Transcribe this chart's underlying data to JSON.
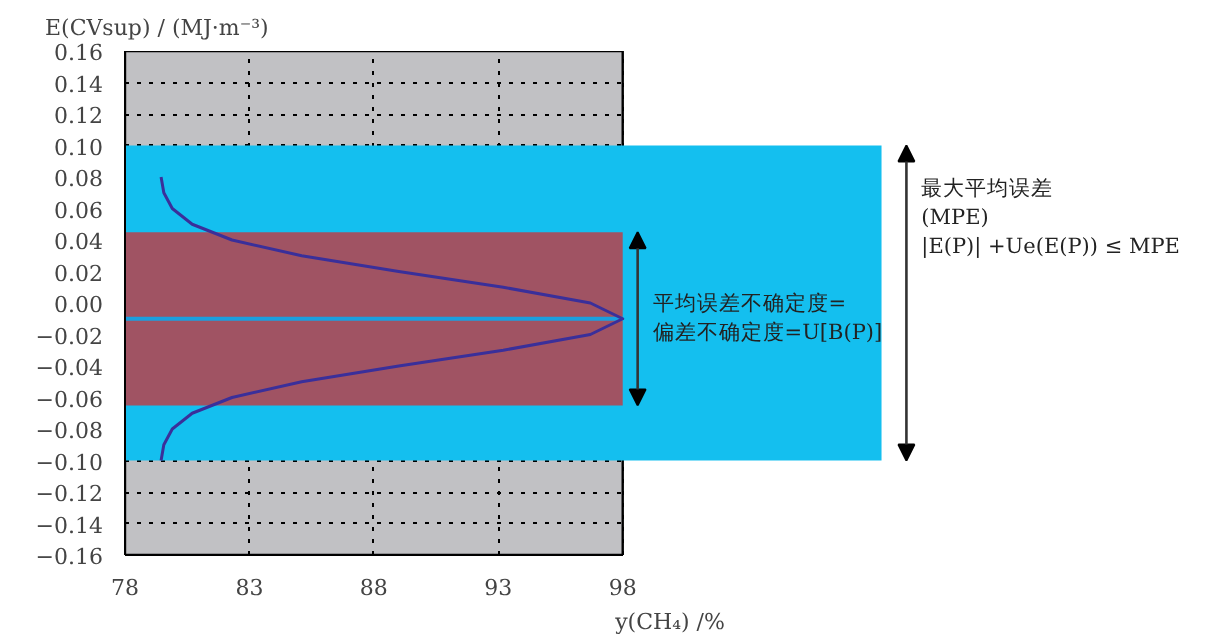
{
  "chart_data": {
    "type": "line",
    "xlabel": "y(CH₄) /%",
    "ylabel": "E(CVsup) / (MJ·m⁻³)",
    "xlim": [
      78,
      98
    ],
    "xticks": [
      78,
      83,
      88,
      93,
      98
    ],
    "ylim": [
      -0.16,
      0.16
    ],
    "yticks": [
      -0.16,
      -0.14,
      -0.12,
      {
        "value": -0.1,
        "label": "−0.10"
      },
      -0.08,
      -0.06,
      -0.04,
      -0.02,
      {
        "value": 0,
        "label": "0.00"
      },
      0.02,
      0.04,
      0.06,
      0.08,
      {
        "value": 0.1,
        "label": "0.10"
      },
      0.12,
      0.14,
      0.16
    ],
    "grid": true,
    "series": [
      {
        "color": "#3a2f9a",
        "x": [
          79.45,
          79.56,
          79.9,
          80.7,
          82.3,
          85.1,
          89.0,
          93.2,
          96.7,
          98.0,
          96.7,
          93.2,
          89.0,
          85.1,
          82.3,
          80.7,
          79.9,
          79.56,
          79.45
        ],
        "values": [
          0.08,
          0.07,
          0.06,
          0.05,
          0.04,
          0.03,
          0.02,
          0.01,
          0.0,
          -0.01,
          -0.02,
          -0.03,
          -0.04,
          -0.05,
          -0.06,
          -0.07,
          -0.08,
          -0.09,
          -0.1
        ]
      }
    ],
    "bands": [
      {
        "axis": "y",
        "from": -0.1,
        "to": 0.1,
        "color": "#14bfef",
        "label": "最大平均误差\n(MPE)\n|E(P)| +Ue(E(P)) ≤ MPE"
      },
      {
        "axis": "y",
        "from": -0.065,
        "to": 0.045,
        "color": "#a05363",
        "label": "平均误差不确定度=\n偏差不确定度=U[B(P)]"
      }
    ],
    "ref_lines": [
      {
        "axis": "y",
        "value": -0.01,
        "color": "#1a9fe0"
      }
    ]
  }
}
